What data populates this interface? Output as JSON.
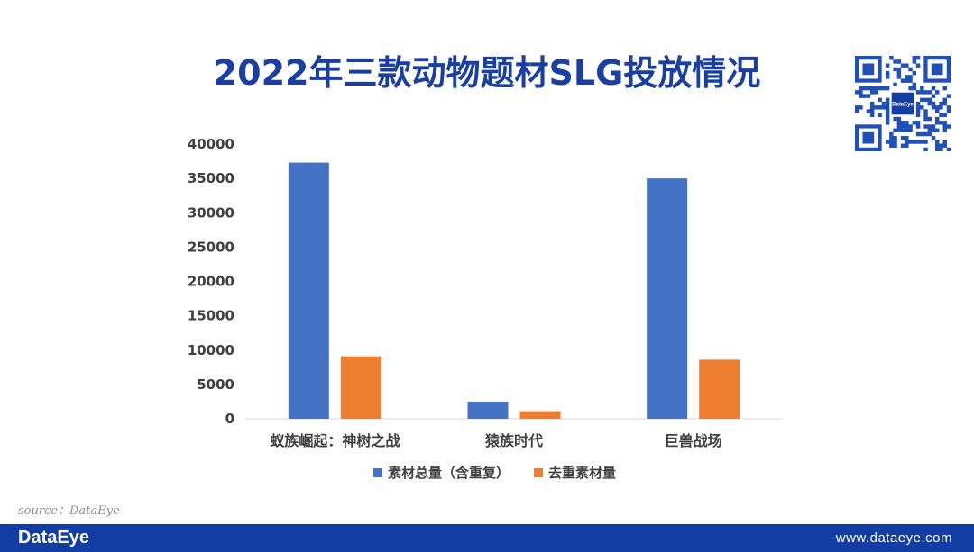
{
  "page": {
    "title": "2022年三款动物题材SLG投放情况",
    "source": "source：DataEye",
    "footer_brand": "DataEye",
    "footer_url": "www.dataeye.com",
    "qr_logo_text": "DataEye"
  },
  "colors": {
    "title": "#1a3fa0",
    "footer_bg": "#123ea3",
    "series_total": "#4472c4",
    "series_dedup": "#ed7d31",
    "axis_text": "#404040"
  },
  "chart_data": {
    "type": "bar",
    "categories": [
      "蚁族崛起：神树之战",
      "猿族时代",
      "巨兽战场"
    ],
    "series": [
      {
        "name": "素材总量（含重复）",
        "values": [
          37300,
          2500,
          35000
        ],
        "color": "#4472c4"
      },
      {
        "name": "去重素材量",
        "values": [
          9100,
          1100,
          8600
        ],
        "color": "#ed7d31"
      }
    ],
    "ylim": [
      0,
      40000
    ],
    "yticks": [
      0,
      5000,
      10000,
      15000,
      20000,
      25000,
      30000,
      35000,
      40000
    ],
    "grid": false,
    "legend": "bottom"
  }
}
